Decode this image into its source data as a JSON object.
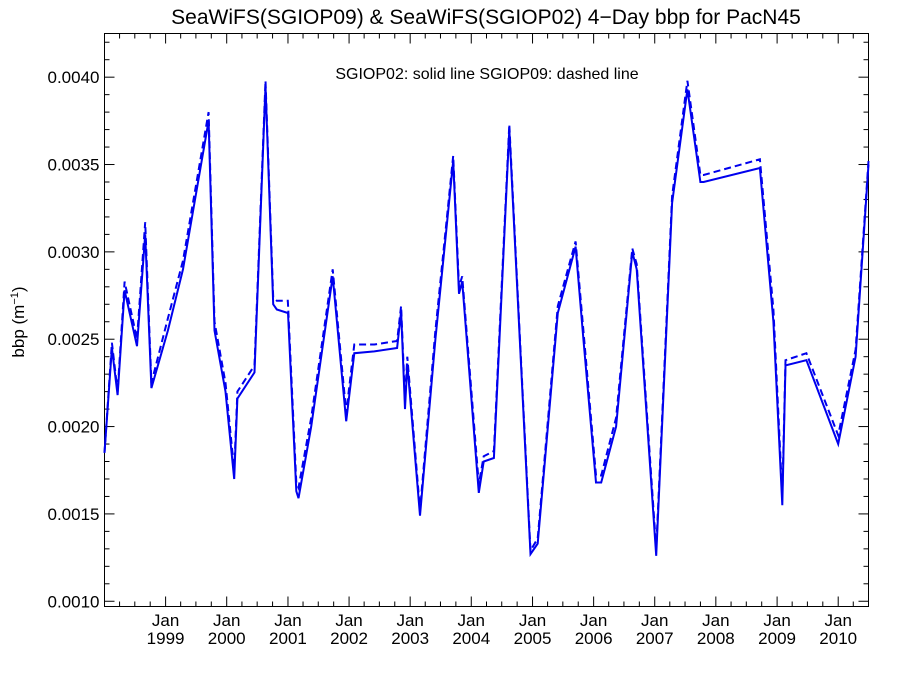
{
  "chart_data": {
    "type": "line",
    "title": "SeaWiFS(SGIOP09) & SeaWiFS(SGIOP02) 4−Day bbp for PacN45",
    "annotation": "SGIOP02: solid line   SGIOP09: dashed line",
    "ylabel": {
      "main": "bbp (m",
      "sup": "−1",
      "end": ")"
    },
    "ylim": [
      0.00097,
      0.00425
    ],
    "xlim": [
      "1998-01-01",
      "2010-07-01"
    ],
    "x_tick_month": "Jan",
    "x_tick_labels": [
      {
        "month": "Jan",
        "year": "1999",
        "date": "1999-01-01"
      },
      {
        "month": "Jan",
        "year": "2000",
        "date": "2000-01-01"
      },
      {
        "month": "Jan",
        "year": "2001",
        "date": "2001-01-01"
      },
      {
        "month": "Jan",
        "year": "2002",
        "date": "2002-01-01"
      },
      {
        "month": "Jan",
        "year": "2003",
        "date": "2003-01-01"
      },
      {
        "month": "Jan",
        "year": "2004",
        "date": "2004-01-01"
      },
      {
        "month": "Jan",
        "year": "2005",
        "date": "2005-01-01"
      },
      {
        "month": "Jan",
        "year": "2006",
        "date": "2006-01-01"
      },
      {
        "month": "Jan",
        "year": "2007",
        "date": "2007-01-01"
      },
      {
        "month": "Jan",
        "year": "2008",
        "date": "2008-01-01"
      },
      {
        "month": "Jan",
        "year": "2009",
        "date": "2009-01-01"
      },
      {
        "month": "Jan",
        "year": "2010",
        "date": "2010-01-01"
      }
    ],
    "y_ticks": [
      {
        "value": 0.001,
        "label": "0.0010"
      },
      {
        "value": 0.0015,
        "label": "0.0015"
      },
      {
        "value": 0.002,
        "label": "0.0020"
      },
      {
        "value": 0.0025,
        "label": "0.0025"
      },
      {
        "value": 0.003,
        "label": "0.0030"
      },
      {
        "value": 0.0035,
        "label": "0.0035"
      },
      {
        "value": 0.004,
        "label": "0.0040"
      }
    ],
    "line_color": "#0000ee",
    "series": [
      {
        "name": "SGIOP02",
        "style": "solid",
        "x": [
          "1998-01-01",
          "1998-02-14",
          "1998-03-20",
          "1998-05-01",
          "1998-07-14",
          "1998-09-01",
          "1998-10-08",
          "1999-01-15",
          "1999-04-15",
          "1999-09-15",
          "1999-10-20",
          "1999-12-25",
          "2000-02-15",
          "2000-03-05",
          "2000-06-15",
          "2000-08-20",
          "2000-10-05",
          "2000-10-26",
          "2000-12-31",
          "2001-01-01",
          "2001-02-20",
          "2001-03-05",
          "2001-05-20",
          "2001-09-25",
          "2001-12-15",
          "2002-02-01",
          "2002-06-01",
          "2002-10-15",
          "2002-11-08",
          "2002-12-01",
          "2002-12-15",
          "2003-03-01",
          "2003-06-01",
          "2003-09-15",
          "2003-10-20",
          "2003-11-08",
          "2004-02-15",
          "2004-03-15",
          "2004-05-15",
          "2004-08-15",
          "2004-12-20",
          "2005-02-01",
          "2005-06-01",
          "2005-09-15",
          "2005-11-01",
          "2006-01-15",
          "2006-02-15",
          "2006-05-15",
          "2006-08-20",
          "2006-09-15",
          "2007-01-10",
          "2007-04-15",
          "2007-07-15",
          "2007-10-01",
          "2007-10-20",
          "2008-09-20",
          "2008-12-10",
          "2009-02-01",
          "2009-02-20",
          "2009-06-25",
          "2010-01-01",
          "2010-04-15",
          "2010-07-01"
        ],
        "y": [
          0.00185,
          0.00245,
          0.00218,
          0.00278,
          0.00246,
          0.0031,
          0.00222,
          0.00255,
          0.0029,
          0.00375,
          0.00255,
          0.0022,
          0.0017,
          0.00216,
          0.00231,
          0.00395,
          0.0027,
          0.00267,
          0.00265,
          0.00265,
          0.00163,
          0.00159,
          0.002,
          0.00286,
          0.00203,
          0.00242,
          0.00243,
          0.00245,
          0.00266,
          0.0021,
          0.00236,
          0.00149,
          0.0025,
          0.00352,
          0.00276,
          0.00283,
          0.00162,
          0.0018,
          0.00182,
          0.0037,
          0.00127,
          0.00133,
          0.00265,
          0.00303,
          0.0025,
          0.00168,
          0.00168,
          0.002,
          0.003,
          0.0029,
          0.00126,
          0.00328,
          0.00393,
          0.0034,
          0.0034,
          0.00348,
          0.0026,
          0.00155,
          0.00235,
          0.00238,
          0.0019,
          0.0024,
          0.0035
        ]
      },
      {
        "name": "SGIOP09",
        "style": "dashed",
        "x": [
          "1998-01-01",
          "1998-02-14",
          "1998-03-20",
          "1998-05-01",
          "1998-07-14",
          "1998-09-01",
          "1998-10-08",
          "1999-01-15",
          "1999-04-15",
          "1999-09-15",
          "1999-10-20",
          "1999-12-25",
          "2000-02-15",
          "2000-03-05",
          "2000-06-15",
          "2000-08-20",
          "2000-10-05",
          "2000-10-26",
          "2000-12-31",
          "2001-01-01",
          "2001-02-20",
          "2001-03-05",
          "2001-05-20",
          "2001-09-25",
          "2001-12-15",
          "2002-02-01",
          "2002-06-01",
          "2002-10-15",
          "2002-11-08",
          "2002-12-01",
          "2002-12-15",
          "2003-03-01",
          "2003-06-01",
          "2003-09-15",
          "2003-10-20",
          "2003-11-08",
          "2004-02-15",
          "2004-03-15",
          "2004-05-15",
          "2004-08-15",
          "2004-12-20",
          "2005-02-01",
          "2005-06-01",
          "2005-09-15",
          "2005-11-01",
          "2006-01-15",
          "2006-02-15",
          "2006-05-15",
          "2006-08-20",
          "2006-09-15",
          "2007-01-10",
          "2007-04-15",
          "2007-07-15",
          "2007-10-01",
          "2007-10-20",
          "2008-09-20",
          "2008-12-10",
          "2009-02-01",
          "2009-02-20",
          "2009-06-25",
          "2010-01-01",
          "2010-04-15",
          "2010-07-01"
        ],
        "y": [
          0.00185,
          0.00248,
          0.0022,
          0.00283,
          0.0025,
          0.00317,
          0.00225,
          0.00262,
          0.00295,
          0.0038,
          0.0026,
          0.00225,
          0.00175,
          0.0022,
          0.00235,
          0.00398,
          0.00274,
          0.00272,
          0.00272,
          0.0027,
          0.00168,
          0.00165,
          0.00205,
          0.0029,
          0.00208,
          0.00247,
          0.00247,
          0.00249,
          0.00269,
          0.00215,
          0.0024,
          0.00152,
          0.00255,
          0.00355,
          0.0028,
          0.00286,
          0.00167,
          0.00183,
          0.00186,
          0.00373,
          0.00129,
          0.00136,
          0.00269,
          0.00306,
          0.00255,
          0.00172,
          0.00172,
          0.00205,
          0.00302,
          0.00293,
          0.0013,
          0.00332,
          0.00398,
          0.00344,
          0.00344,
          0.00353,
          0.00267,
          0.0016,
          0.00238,
          0.00242,
          0.00195,
          0.00244,
          0.00352
        ]
      }
    ]
  }
}
